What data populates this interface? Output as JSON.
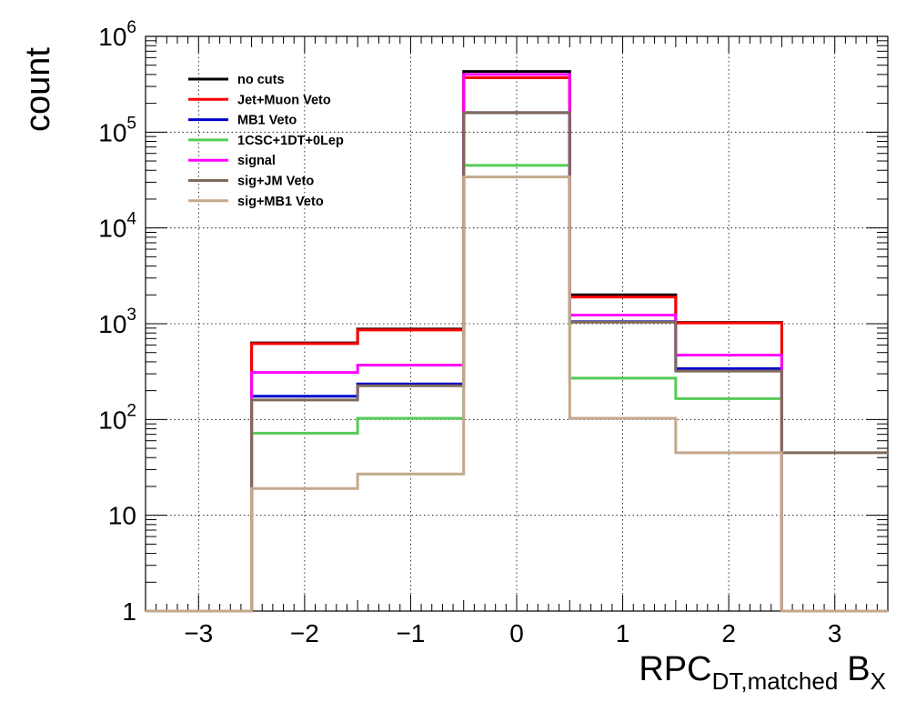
{
  "chart_data": {
    "type": "histogram",
    "title": "",
    "xlabel": "RPC",
    "xlabel_sub": "DT,matched",
    "xlabel_suffix": "B",
    "xlabel_suffix_sub": "X",
    "ylabel": "count",
    "xlim": [
      -3.5,
      3.5
    ],
    "ylim": [
      1,
      1000000
    ],
    "yscale": "log",
    "grid": true,
    "legend_position": "top-left",
    "bin_edges": [
      -3.5,
      -2.5,
      -1.5,
      -0.5,
      0.5,
      1.5,
      2.5,
      3.5
    ],
    "x_ticks": [
      {
        "value": -3,
        "label": "−3"
      },
      {
        "value": -2,
        "label": "−2"
      },
      {
        "value": -1,
        "label": "−1"
      },
      {
        "value": 0,
        "label": "0"
      },
      {
        "value": 1,
        "label": "1"
      },
      {
        "value": 2,
        "label": "2"
      },
      {
        "value": 3,
        "label": "3"
      }
    ],
    "y_ticks": [
      {
        "value": 1,
        "base": "1",
        "exp": ""
      },
      {
        "value": 10,
        "base": "10",
        "exp": ""
      },
      {
        "value": 100,
        "base": "10",
        "exp": "2"
      },
      {
        "value": 1000,
        "base": "10",
        "exp": "3"
      },
      {
        "value": 10000,
        "base": "10",
        "exp": "4"
      },
      {
        "value": 100000,
        "base": "10",
        "exp": "5"
      },
      {
        "value": 1000000,
        "base": "10",
        "exp": "6"
      }
    ],
    "series": [
      {
        "name": "no cuts",
        "color": "#000000",
        "values": [
          0,
          630,
          880,
          430000,
          2000,
          1030,
          0
        ]
      },
      {
        "name": "Jet+Muon Veto",
        "color": "#ff0000",
        "values": [
          0,
          620,
          860,
          370000,
          1900,
          1020,
          0
        ]
      },
      {
        "name": "MB1 Veto",
        "color": "#0000cc",
        "values": [
          0,
          175,
          235,
          160000,
          1050,
          340,
          0
        ]
      },
      {
        "name": "1CSC+1DT+0Lep",
        "color": "#55cc55",
        "values": [
          0,
          72,
          103,
          45000,
          270,
          165,
          0
        ]
      },
      {
        "name": "signal",
        "color": "#ff00ff",
        "values": [
          0,
          310,
          370,
          400000,
          1230,
          470,
          0
        ]
      },
      {
        "name": "sig+JM Veto",
        "color": "#806a5a",
        "values": [
          0,
          160,
          225,
          160000,
          1040,
          320,
          45
        ]
      },
      {
        "name": "sig+MB1 Veto",
        "color": "#c4a88c",
        "values": [
          0,
          19,
          27,
          34000,
          103,
          45,
          0
        ]
      }
    ]
  }
}
